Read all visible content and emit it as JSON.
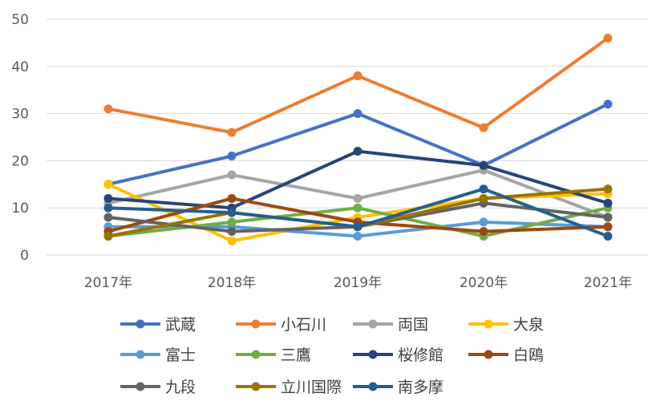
{
  "chart_data": {
    "type": "line",
    "title": "",
    "xlabel": "",
    "ylabel": "",
    "ylim": [
      0,
      50
    ],
    "yticks": [
      0,
      10,
      20,
      30,
      40,
      50
    ],
    "grid": "horizontal",
    "legend_position": "bottom",
    "categories": [
      "2017年",
      "2018年",
      "2019年",
      "2020年",
      "2021年"
    ],
    "series": [
      {
        "name": "武蔵",
        "color": "#4472C4",
        "values": [
          15,
          21,
          30,
          19,
          32
        ]
      },
      {
        "name": "小石川",
        "color": "#ED7D31",
        "values": [
          31,
          26,
          38,
          27,
          46
        ]
      },
      {
        "name": "両国",
        "color": "#A5A5A5",
        "values": [
          11,
          17,
          12,
          18,
          8
        ]
      },
      {
        "name": "大泉",
        "color": "#FFC000",
        "values": [
          15,
          3,
          8,
          12,
          13
        ]
      },
      {
        "name": "富士",
        "color": "#5B9BD5",
        "values": [
          6,
          6,
          4,
          7,
          6
        ]
      },
      {
        "name": "三鷹",
        "color": "#70AD47",
        "values": [
          4,
          7,
          10,
          4,
          10
        ]
      },
      {
        "name": "桜修館",
        "color": "#264478",
        "values": [
          12,
          10,
          22,
          19,
          11
        ]
      },
      {
        "name": "白鴎",
        "color": "#9E480E",
        "values": [
          5,
          12,
          7,
          5,
          6
        ]
      },
      {
        "name": "九段",
        "color": "#636363",
        "values": [
          8,
          5,
          6,
          11,
          8
        ]
      },
      {
        "name": "立川国際",
        "color": "#997300",
        "values": [
          4,
          9,
          6,
          12,
          14
        ]
      },
      {
        "name": "南多摩",
        "color": "#255E91",
        "values": [
          10,
          9,
          6,
          14,
          4
        ]
      }
    ]
  }
}
